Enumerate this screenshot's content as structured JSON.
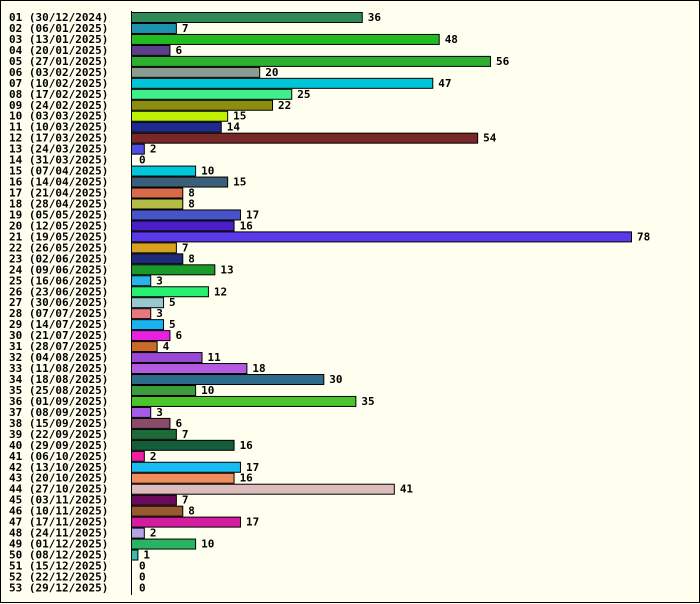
{
  "chart_data": {
    "type": "bar",
    "orientation": "horizontal",
    "title": "",
    "xlabel": "",
    "ylabel": "",
    "grid": false,
    "legend": "none",
    "xlim": [
      0,
      78
    ],
    "background": "#fffff0",
    "categories": [
      "01 (30/12/2024)",
      "02 (06/01/2025)",
      "03 (13/01/2025)",
      "04 (20/01/2025)",
      "05 (27/01/2025)",
      "06 (03/02/2025)",
      "07 (10/02/2025)",
      "08 (17/02/2025)",
      "09 (24/02/2025)",
      "10 (03/03/2025)",
      "11 (10/03/2025)",
      "12 (17/03/2025)",
      "13 (24/03/2025)",
      "14 (31/03/2025)",
      "15 (07/04/2025)",
      "16 (14/04/2025)",
      "17 (21/04/2025)",
      "18 (28/04/2025)",
      "19 (05/05/2025)",
      "20 (12/05/2025)",
      "21 (19/05/2025)",
      "22 (26/05/2025)",
      "23 (02/06/2025)",
      "24 (09/06/2025)",
      "25 (16/06/2025)",
      "26 (23/06/2025)",
      "27 (30/06/2025)",
      "28 (07/07/2025)",
      "29 (14/07/2025)",
      "30 (21/07/2025)",
      "31 (28/07/2025)",
      "32 (04/08/2025)",
      "33 (11/08/2025)",
      "34 (18/08/2025)",
      "35 (25/08/2025)",
      "36 (01/09/2025)",
      "37 (08/09/2025)",
      "38 (15/09/2025)",
      "39 (22/09/2025)",
      "40 (29/09/2025)",
      "41 (06/10/2025)",
      "42 (13/10/2025)",
      "43 (20/10/2025)",
      "44 (27/10/2025)",
      "45 (03/11/2025)",
      "46 (10/11/2025)",
      "47 (17/11/2025)",
      "48 (24/11/2025)",
      "49 (01/12/2025)",
      "50 (08/12/2025)",
      "51 (15/12/2025)",
      "52 (22/12/2025)",
      "53 (29/12/2025)"
    ],
    "values": [
      36,
      7,
      48,
      6,
      56,
      20,
      47,
      25,
      22,
      15,
      14,
      54,
      2,
      0,
      10,
      15,
      8,
      8,
      17,
      16,
      78,
      7,
      8,
      13,
      3,
      12,
      5,
      3,
      5,
      6,
      4,
      11,
      18,
      30,
      10,
      35,
      3,
      6,
      7,
      16,
      2,
      17,
      16,
      41,
      7,
      8,
      17,
      2,
      10,
      1,
      0,
      0,
      0
    ],
    "colors": [
      "#2e8b57",
      "#1e90b0",
      "#22bb22",
      "#5c3f8a",
      "#2db02d",
      "#8c9c90",
      "#00c5d8",
      "#3ef08a",
      "#8c8c10",
      "#bef000",
      "#1e2a8c",
      "#782828",
      "#5050e0",
      "#ffffff",
      "#00c8d8",
      "#3a5f78",
      "#d86a4a",
      "#b4bc46",
      "#4654c8",
      "#4a1ec8",
      "#5a3ae8",
      "#d8a020",
      "#1e2a7a",
      "#1a9a2a",
      "#28b4e8",
      "#28f070",
      "#98c8d0",
      "#e87880",
      "#18b4f0",
      "#e820e0",
      "#c86a28",
      "#9a48d8",
      "#b45ae0",
      "#2e6a8a",
      "#3c9c3c",
      "#4cc42c",
      "#a65ae8",
      "#8a4a6a",
      "#1e6a3a",
      "#145c3a",
      "#f020a0",
      "#18bcf0",
      "#f08c5a",
      "#dcbcbc",
      "#6a0a5a",
      "#9a5a30",
      "#d41ca0",
      "#b4a4e8",
      "#28b460",
      "#3cbca8",
      "#ffffff",
      "#ffffff",
      "#ffffff"
    ]
  }
}
